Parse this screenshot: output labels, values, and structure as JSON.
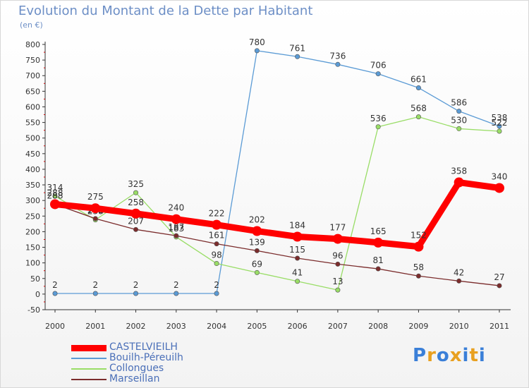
{
  "chart_data": {
    "type": "line",
    "title": "Evolution du Montant de la Dette par Habitant",
    "subtitle": "(en €)",
    "xlabel": "",
    "ylabel": "",
    "ylim": [
      -50,
      800
    ],
    "yticks": [
      -50,
      0,
      50,
      100,
      150,
      200,
      250,
      300,
      350,
      400,
      450,
      500,
      550,
      600,
      650,
      700,
      750,
      800
    ],
    "x": [
      "2000",
      "2001",
      "2002",
      "2003",
      "2004",
      "2005",
      "2006",
      "2007",
      "2008",
      "2009",
      "2010",
      "2011"
    ],
    "grid": false,
    "legend_position": "bottom-left",
    "series": [
      {
        "name": "CASTELVIEILH",
        "color": "#ff0000",
        "values": [
          288,
          275,
          258,
          240,
          222,
          202,
          184,
          177,
          165,
          152,
          358,
          340
        ],
        "labels": [
          "288",
          "275",
          "258",
          "240",
          "222",
          "202",
          "184",
          "177",
          "165",
          "152",
          "358",
          "340"
        ]
      },
      {
        "name": "Bouilh-Péreuilh",
        "color": "#5b9bd5",
        "values": [
          2,
          2,
          2,
          2,
          2,
          780,
          761,
          736,
          706,
          661,
          586,
          538
        ],
        "labels": [
          "2",
          "2",
          "2",
          "2",
          "2",
          "780",
          "761",
          "736",
          "706",
          "661",
          "586",
          "538"
        ]
      },
      {
        "name": "Collongues",
        "color": "#99dd66",
        "values": [
          314,
          238,
          325,
          183,
          98,
          69,
          41,
          13,
          536,
          568,
          530,
          522
        ],
        "labels": [
          "314",
          "238",
          "325",
          "183",
          "98",
          "69",
          "41",
          "13",
          "536",
          "568",
          "530",
          "522"
        ]
      },
      {
        "name": "Marseillan",
        "color": "#7b2c2c",
        "values": [
          288,
          242,
          207,
          187,
          161,
          139,
          115,
          96,
          81,
          58,
          42,
          27
        ],
        "labels": [
          "288",
          "242",
          "207",
          "187",
          "161",
          "139",
          "115",
          "96",
          "81",
          "58",
          "42",
          "27"
        ]
      }
    ]
  },
  "brand": {
    "letters": [
      "P",
      "r",
      "o",
      "x",
      "i",
      "t",
      "i"
    ],
    "colors": [
      "#3a7fd8",
      "#e8a020",
      "#3a7fd8",
      "#e8a020",
      "#3a7fd8",
      "#e8a020",
      "#3a7fd8"
    ]
  }
}
